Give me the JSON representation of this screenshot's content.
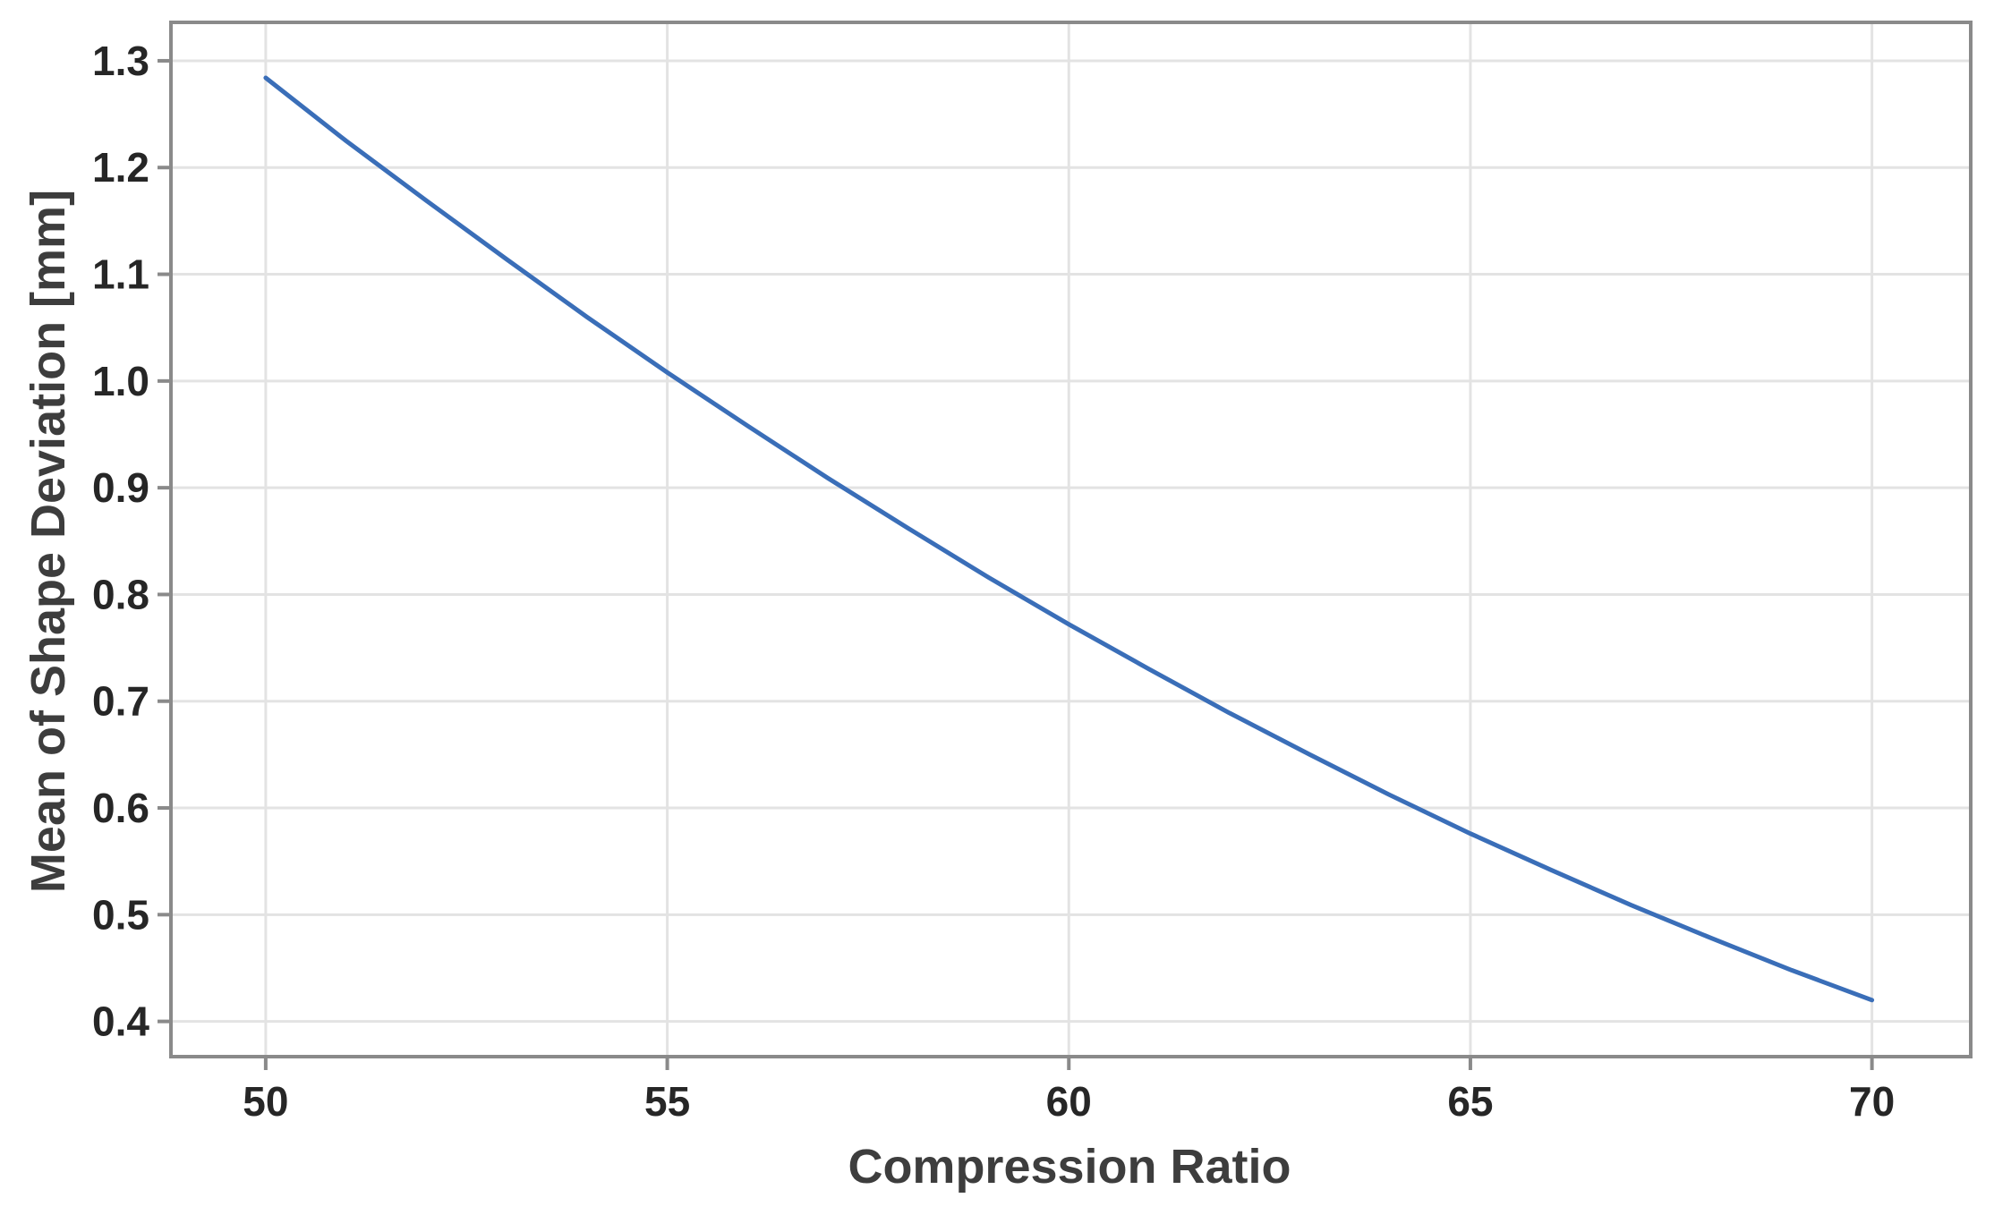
{
  "chart_data": {
    "type": "line",
    "xlabel": "Compression Ratio",
    "ylabel": "Mean of Shape Deviation [mm]",
    "series": [
      {
        "name": "Mean of Shape Deviation",
        "x": [
          50,
          51,
          52,
          53,
          54,
          55,
          56,
          57,
          58,
          59,
          60,
          61,
          62,
          63,
          64,
          65,
          66,
          67,
          68,
          69,
          70
        ],
        "y": [
          1.284,
          1.225,
          1.169,
          1.114,
          1.06,
          1.008,
          0.958,
          0.909,
          0.862,
          0.816,
          0.772,
          0.73,
          0.689,
          0.65,
          0.612,
          0.576,
          0.542,
          0.509,
          0.478,
          0.448,
          0.42
        ]
      }
    ],
    "x_ticks": [
      "50",
      "55",
      "60",
      "65",
      "70"
    ],
    "y_ticks": [
      "0.4",
      "0.5",
      "0.6",
      "0.7",
      "0.8",
      "0.9",
      "1.0",
      "1.1",
      "1.2",
      "1.3"
    ],
    "xlim": [
      48.82,
      71.23
    ],
    "ylim": [
      0.367,
      1.336
    ],
    "grid": true,
    "legend": false,
    "colors": {
      "line": "#3a6eb8",
      "frame": "#8a8a8a",
      "grid": "#e3e3e3",
      "tick_mark": "#8a8a8a",
      "tick_label": "#262626",
      "axis_title": "#3d3d3d",
      "background": "#ffffff"
    }
  }
}
